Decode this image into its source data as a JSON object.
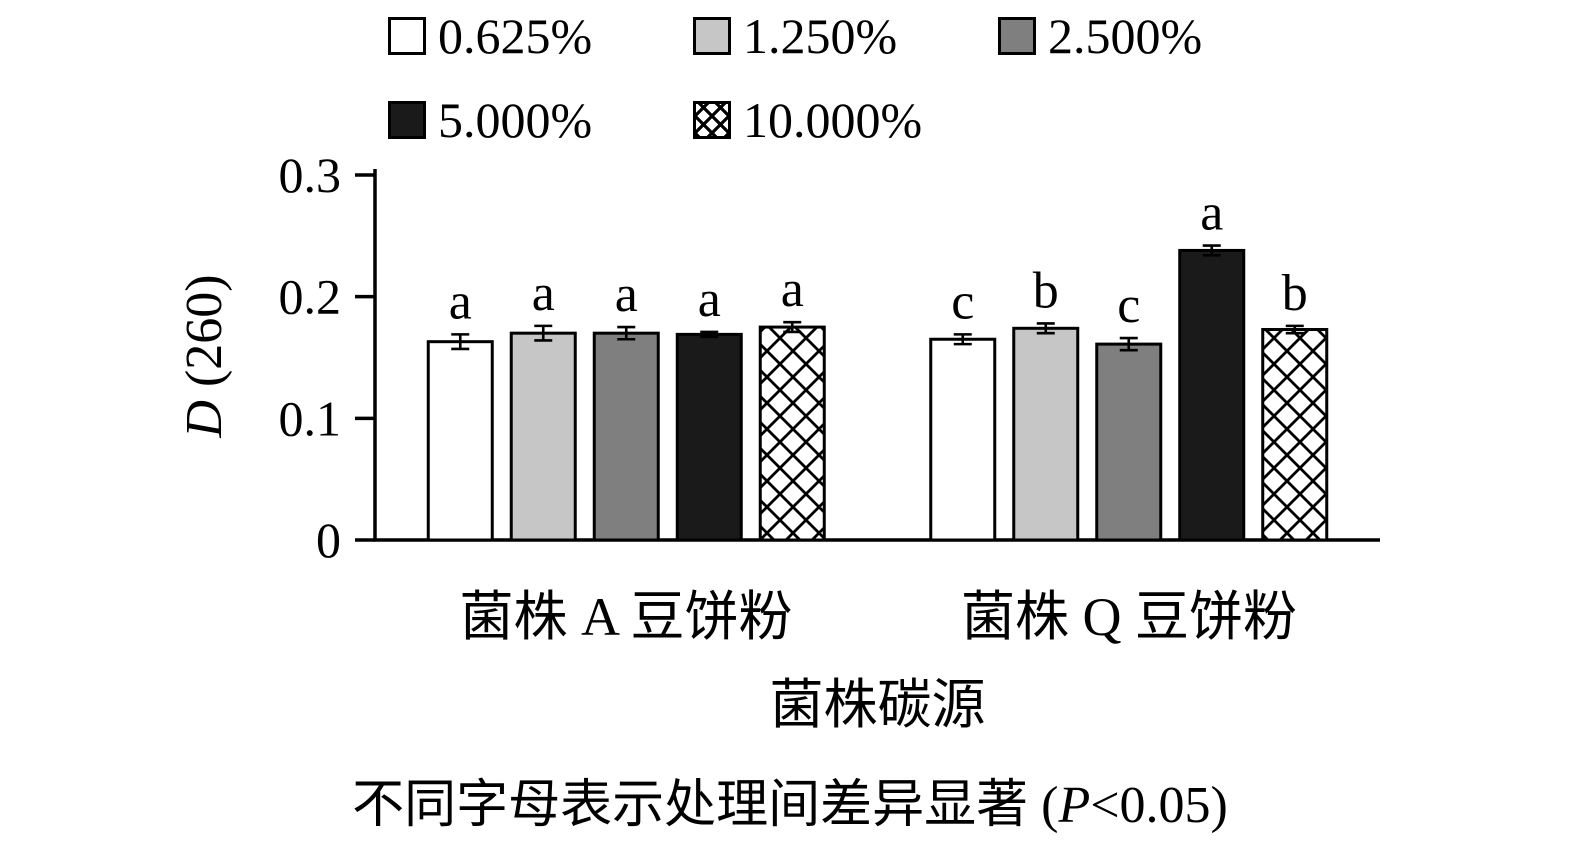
{
  "chart_data": {
    "type": "bar",
    "title": "",
    "xlabel": "菌株碳源",
    "ylabel": {
      "italic": "D",
      "rest": " (260)"
    },
    "ylim": [
      0,
      0.3
    ],
    "yticks": [
      "0",
      "0.1",
      "0.2",
      "0.3"
    ],
    "grid": false,
    "legend_position": "top",
    "categories": [
      "菌株 A 豆饼粉",
      "菌株 Q 豆饼粉"
    ],
    "series": [
      {
        "name": "0.625%",
        "fill": "#ffffff",
        "values": [
          0.163,
          0.165
        ],
        "errors": [
          0.006,
          0.004
        ],
        "letters": [
          "a",
          "c"
        ]
      },
      {
        "name": "1.250%",
        "fill": "#c6c6c6",
        "values": [
          0.17,
          0.174
        ],
        "errors": [
          0.006,
          0.004
        ],
        "letters": [
          "a",
          "b"
        ]
      },
      {
        "name": "2.500%",
        "fill": "#7f7f7f",
        "values": [
          0.17,
          0.161
        ],
        "errors": [
          0.005,
          0.005
        ],
        "letters": [
          "a",
          "c"
        ]
      },
      {
        "name": "5.000%",
        "fill": "#1a1a1a",
        "values": [
          0.169,
          0.238
        ],
        "errors": [
          0.002,
          0.004
        ],
        "letters": [
          "a",
          "a"
        ]
      },
      {
        "name": "10.000%",
        "fill": "crosshatch",
        "values": [
          0.175,
          0.173
        ],
        "errors": [
          0.004,
          0.003
        ],
        "letters": [
          "a",
          "b"
        ]
      }
    ],
    "note": {
      "prefix": "不同字母表示处理间差异显著 (",
      "stat": "P",
      "suffix": "<0.05)"
    },
    "colors": {
      "axis": "#000000",
      "text": "#000000"
    }
  }
}
